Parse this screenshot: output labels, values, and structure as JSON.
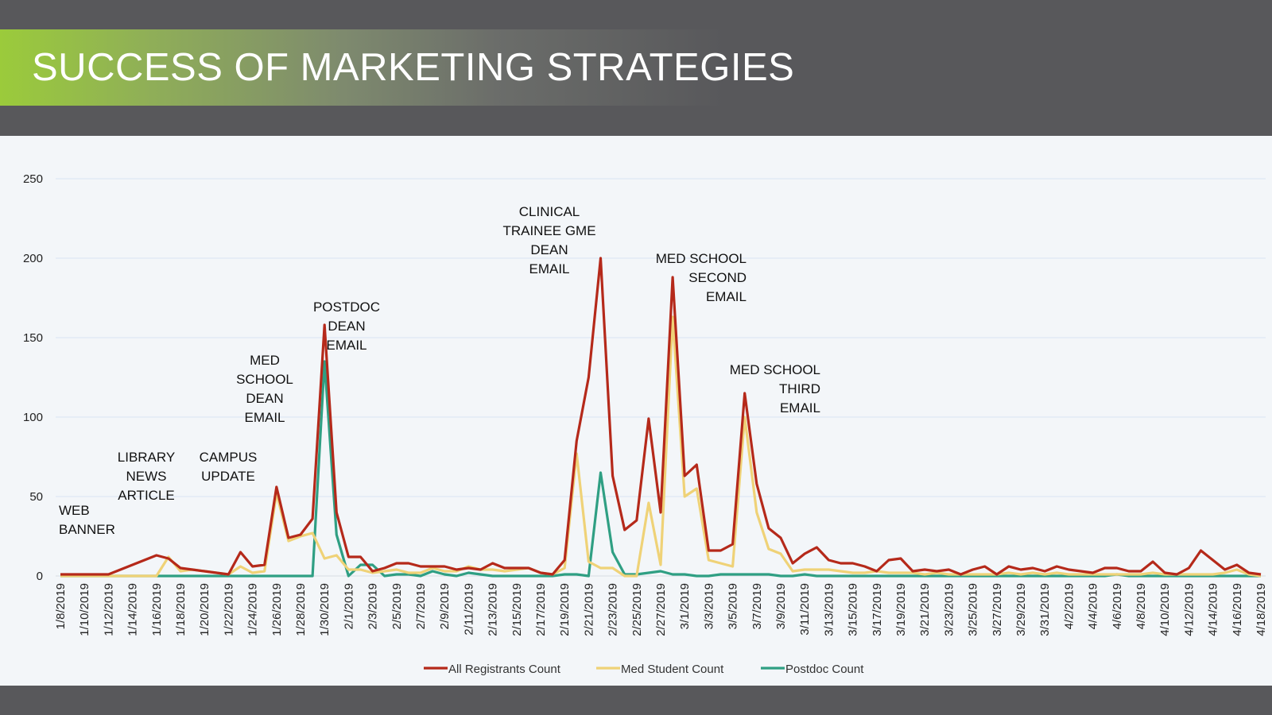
{
  "header": {
    "title": "SUCCESS OF MARKETING STRATEGIES"
  },
  "colors": {
    "background": "#58585b",
    "accent_green": "#9bcb3b",
    "panel": "#f3f6f9"
  },
  "chart_data": {
    "type": "line",
    "title": "",
    "xlabel": "",
    "ylabel": "",
    "ylim": [
      0,
      250
    ],
    "yticks": [
      0,
      50,
      100,
      150,
      200,
      250
    ],
    "grid": true,
    "legend_position": "bottom",
    "x": [
      "1/8/2019",
      "1/9/2019",
      "1/10/2019",
      "1/11/2019",
      "1/12/2019",
      "1/13/2019",
      "1/14/2019",
      "1/15/2019",
      "1/16/2019",
      "1/17/2019",
      "1/18/2019",
      "1/19/2019",
      "1/20/2019",
      "1/21/2019",
      "1/22/2019",
      "1/23/2019",
      "1/24/2019",
      "1/25/2019",
      "1/26/2019",
      "1/27/2019",
      "1/28/2019",
      "1/29/2019",
      "1/30/2019",
      "1/31/2019",
      "2/1/2019",
      "2/2/2019",
      "2/3/2019",
      "2/4/2019",
      "2/5/2019",
      "2/6/2019",
      "2/7/2019",
      "2/8/2019",
      "2/9/2019",
      "2/10/2019",
      "2/11/2019",
      "2/12/2019",
      "2/13/2019",
      "2/14/2019",
      "2/15/2019",
      "2/16/2019",
      "2/17/2019",
      "2/18/2019",
      "2/19/2019",
      "2/20/2019",
      "2/21/2019",
      "2/22/2019",
      "2/23/2019",
      "2/24/2019",
      "2/25/2019",
      "2/26/2019",
      "2/27/2019",
      "2/28/2019",
      "3/1/2019",
      "3/2/2019",
      "3/3/2019",
      "3/4/2019",
      "3/5/2019",
      "3/6/2019",
      "3/7/2019",
      "3/8/2019",
      "3/9/2019",
      "3/10/2019",
      "3/11/2019",
      "3/12/2019",
      "3/13/2019",
      "3/14/2019",
      "3/15/2019",
      "3/16/2019",
      "3/17/2019",
      "3/18/2019",
      "3/19/2019",
      "3/20/2019",
      "3/21/2019",
      "3/22/2019",
      "3/23/2019",
      "3/24/2019",
      "3/25/2019",
      "3/26/2019",
      "3/27/2019",
      "3/28/2019",
      "3/29/2019",
      "3/30/2019",
      "3/31/2019",
      "4/1/2019",
      "4/2/2019",
      "4/3/2019",
      "4/4/2019",
      "4/5/2019",
      "4/6/2019",
      "4/7/2019",
      "4/8/2019",
      "4/9/2019",
      "4/10/2019",
      "4/11/2019",
      "4/12/2019",
      "4/13/2019",
      "4/14/2019",
      "4/15/2019",
      "4/16/2019",
      "4/17/2019",
      "4/18/2019"
    ],
    "tick_labels": [
      "1/8/2019",
      "1/10/2019",
      "1/12/2019",
      "1/14/2019",
      "1/16/2019",
      "1/18/2019",
      "1/20/2019",
      "1/22/2019",
      "1/24/2019",
      "1/26/2019",
      "1/28/2019",
      "1/30/2019",
      "2/1/2019",
      "2/3/2019",
      "2/5/2019",
      "2/7/2019",
      "2/9/2019",
      "2/11/2019",
      "2/13/2019",
      "2/15/2019",
      "2/17/2019",
      "2/19/2019",
      "2/21/2019",
      "2/23/2019",
      "2/25/2019",
      "2/27/2019",
      "3/1/2019",
      "3/3/2019",
      "3/5/2019",
      "3/7/2019",
      "3/9/2019",
      "3/11/2019",
      "3/13/2019",
      "3/15/2019",
      "3/17/2019",
      "3/19/2019",
      "3/21/2019",
      "3/23/2019",
      "3/25/2019",
      "3/27/2019",
      "3/29/2019",
      "3/31/2019",
      "4/2/2019",
      "4/4/2019",
      "4/6/2019",
      "4/8/2019",
      "4/10/2019",
      "4/12/2019",
      "4/14/2019",
      "4/16/2019",
      "4/18/2019"
    ],
    "series": [
      {
        "name": "All Registrants Count",
        "color": "#b5291a",
        "values": [
          1,
          1,
          1,
          1,
          1,
          4,
          7,
          10,
          13,
          11,
          5,
          4,
          3,
          2,
          1,
          15,
          6,
          7,
          56,
          24,
          26,
          36,
          158,
          40,
          12,
          12,
          3,
          5,
          8,
          8,
          6,
          6,
          6,
          4,
          5,
          4,
          8,
          5,
          5,
          5,
          2,
          1,
          10,
          85,
          125,
          200,
          63,
          29,
          35,
          99,
          40,
          188,
          63,
          70,
          16,
          16,
          20,
          115,
          58,
          30,
          24,
          8,
          14,
          18,
          10,
          8,
          8,
          6,
          3,
          10,
          11,
          3,
          4,
          3,
          4,
          1,
          4,
          6,
          1,
          6,
          4,
          5,
          3,
          6,
          4,
          3,
          2,
          5,
          5,
          3,
          3,
          9,
          2,
          1,
          5,
          16,
          10,
          4,
          7,
          2,
          1
        ]
      },
      {
        "name": "Med Student Count",
        "color": "#efd277",
        "values": [
          0,
          0,
          0,
          0,
          0,
          0,
          0,
          0,
          0,
          12,
          3,
          4,
          3,
          2,
          1,
          6,
          2,
          3,
          52,
          22,
          25,
          27,
          11,
          13,
          4,
          4,
          2,
          3,
          4,
          2,
          2,
          5,
          3,
          3,
          6,
          4,
          4,
          3,
          4,
          5,
          2,
          1,
          5,
          77,
          9,
          5,
          5,
          0,
          0,
          46,
          7,
          163,
          50,
          55,
          10,
          8,
          6,
          100,
          40,
          17,
          14,
          3,
          4,
          4,
          4,
          3,
          2,
          2,
          3,
          2,
          2,
          2,
          1,
          2,
          1,
          1,
          1,
          1,
          1,
          2,
          1,
          2,
          1,
          2,
          1,
          1,
          1,
          1,
          1,
          1,
          1,
          2,
          1,
          1,
          1,
          1,
          1,
          2,
          4,
          1,
          0
        ]
      },
      {
        "name": "Postdoc Count",
        "color": "#2f9f83",
        "values": [
          0,
          0,
          0,
          0,
          0,
          0,
          0,
          0,
          0,
          0,
          0,
          0,
          0,
          0,
          0,
          0,
          0,
          0,
          0,
          0,
          0,
          0,
          135,
          26,
          0,
          7,
          7,
          0,
          1,
          1,
          0,
          3,
          1,
          0,
          2,
          1,
          0,
          0,
          0,
          0,
          0,
          0,
          1,
          1,
          0,
          65,
          15,
          1,
          1,
          2,
          3,
          1,
          1,
          0,
          0,
          1,
          1,
          1,
          1,
          1,
          0,
          0,
          1,
          0,
          0,
          0,
          0,
          0,
          0,
          0,
          0,
          0,
          0,
          0,
          0,
          0,
          0,
          0,
          0,
          0,
          0,
          0,
          0,
          0,
          0,
          0,
          0,
          0,
          1,
          0,
          0,
          0,
          0,
          0,
          0,
          0,
          0,
          0,
          0,
          0,
          0
        ]
      }
    ],
    "annotations": [
      {
        "lines": [
          "WEB",
          "BANNER"
        ]
      },
      {
        "lines": [
          "LIBRARY",
          "NEWS",
          "ARTICLE"
        ]
      },
      {
        "lines": [
          "CAMPUS",
          "UPDATE"
        ]
      },
      {
        "lines": [
          "MED",
          "SCHOOL",
          "DEAN",
          "EMAIL"
        ]
      },
      {
        "lines": [
          "POSTDOC",
          "DEAN",
          "EMAIL"
        ]
      },
      {
        "lines": [
          "CLINICAL",
          "TRAINEE GME",
          "DEAN",
          "EMAIL"
        ]
      },
      {
        "lines": [
          "MED SCHOOL",
          "SECOND",
          "EMAIL"
        ]
      },
      {
        "lines": [
          "MED SCHOOL",
          "THIRD",
          "EMAIL"
        ]
      }
    ]
  }
}
